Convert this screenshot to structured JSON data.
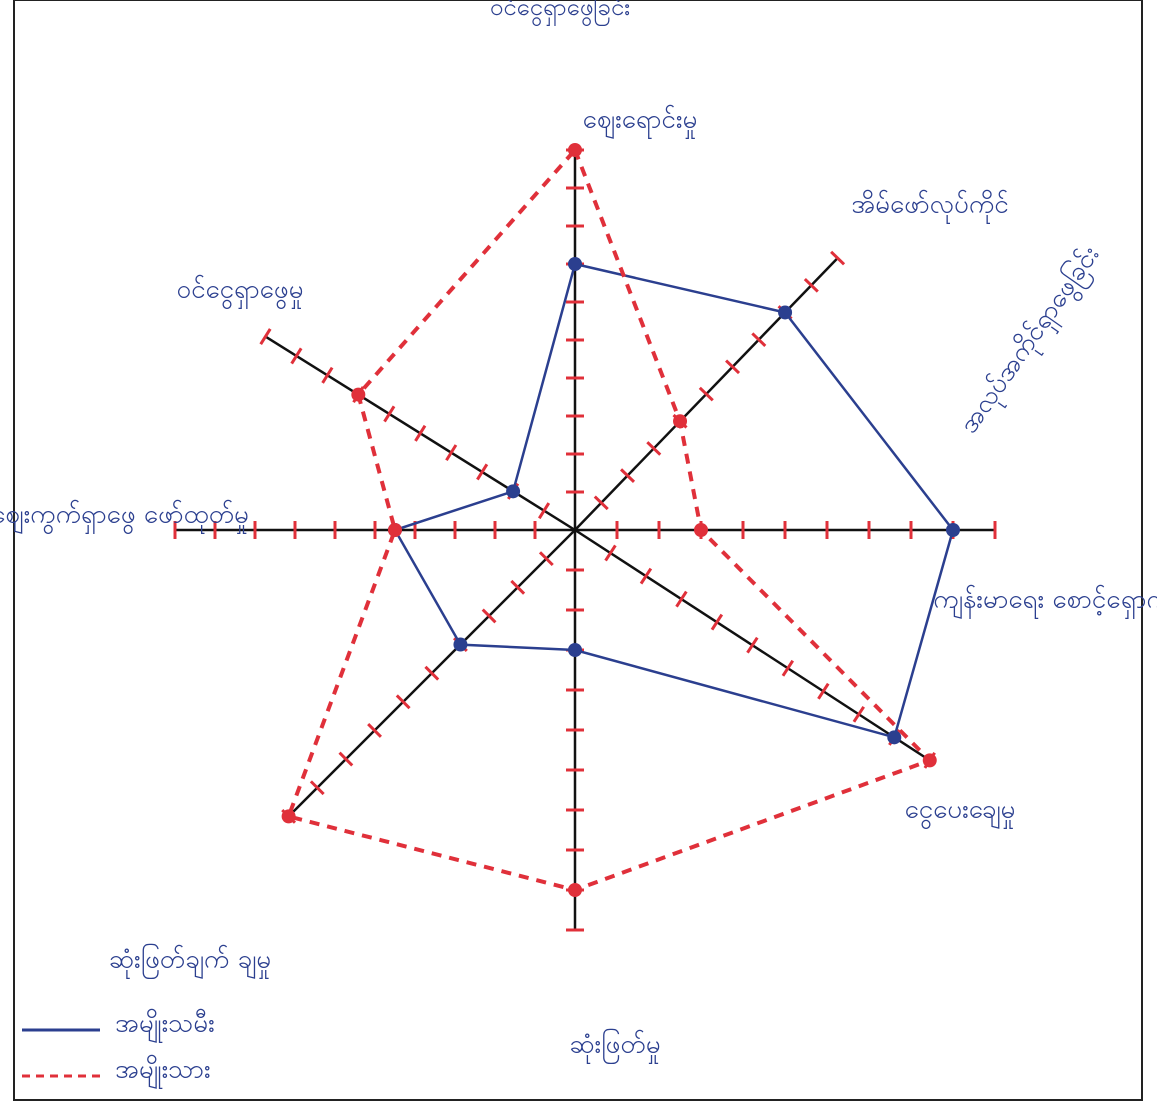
{
  "chart_data": {
    "type": "radar",
    "title": "ဝင်ငွေရှာဖွေခြင်း",
    "categories": [
      "ဈေးရောင်းမှု",
      "အိမ်ဖော်လုပ်ကိုင်",
      "ကျန်းမာရေး စောင့်ရှောက်မှု",
      "ငွေပေးချေမှု",
      "ဆုံးဖြတ်မှု",
      "ဆုံးဖြတ်ချက် ချမှု",
      "ဈေးကွက်ရှာဖွေ ဖော်ထုတ်မှု",
      "ဝင်ငွေရှာဖွေမှု"
    ],
    "annotations": [
      "အလုပ်အကိုင်ရှာဖွေခြင်း"
    ],
    "rlim": [
      0,
      10
    ],
    "rticks": [
      1,
      2,
      3,
      4,
      5,
      6,
      7,
      8,
      9,
      10
    ],
    "series": [
      {
        "name": "အမျိုးသမီး",
        "color": "#2b3f8f",
        "dash": false,
        "values": [
          7,
          8,
          9,
          9,
          3,
          4,
          4.5,
          2
        ]
      },
      {
        "name": "အမျိုးသား",
        "color": "#e0303a",
        "dash": true,
        "values": [
          10,
          4,
          3,
          10,
          9,
          10,
          4.5,
          7
        ]
      }
    ],
    "legend": "bottom-left"
  }
}
